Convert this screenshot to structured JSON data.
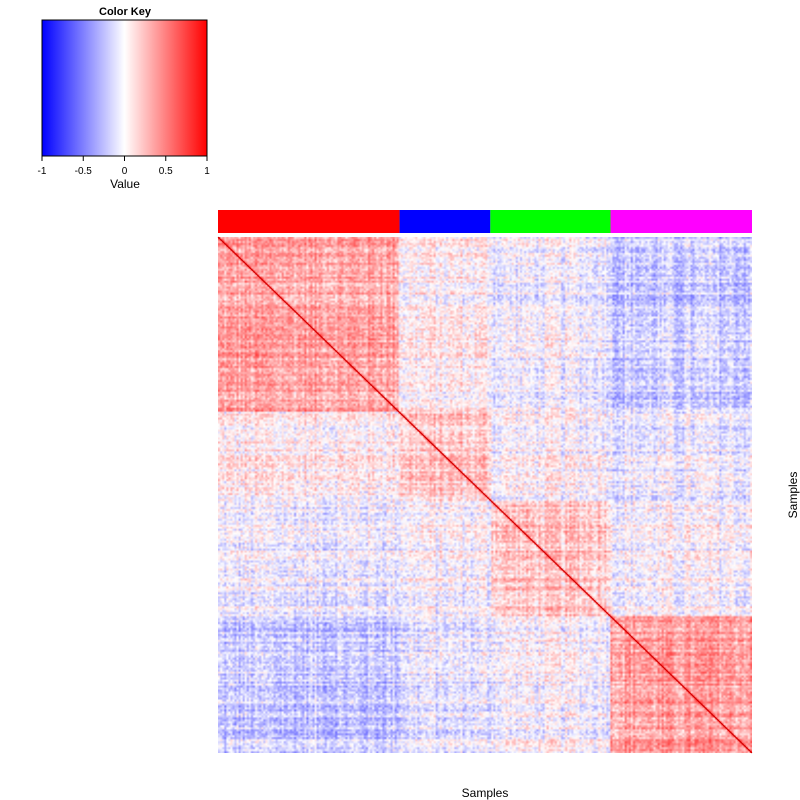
{
  "chart_data": {
    "type": "heatmap",
    "color_key": {
      "title": "Color Key",
      "xlabel": "Value",
      "ticks": [
        "-1",
        "-0.5",
        "0",
        "0.5",
        "1"
      ],
      "range": [
        -1,
        1
      ],
      "colors": {
        "low": "#0000ff",
        "mid": "#ffffff",
        "high": "#ff0000"
      }
    },
    "xlabel": "Samples",
    "ylabel": "Samples",
    "groups": [
      {
        "color": "#ff0000",
        "fraction": 0.34,
        "within": 0.35,
        "between": [
          0.35,
          0.05,
          -0.05,
          -0.2
        ]
      },
      {
        "color": "#0000ff",
        "fraction": 0.17,
        "within": 0.2,
        "between": [
          0.05,
          0.2,
          0.0,
          -0.08
        ]
      },
      {
        "color": "#00ff00",
        "fraction": 0.225,
        "within": 0.22,
        "between": [
          -0.05,
          0.0,
          0.22,
          0.0
        ]
      },
      {
        "color": "#ff00ff",
        "fraction": 0.265,
        "within": 0.38,
        "between": [
          -0.2,
          -0.08,
          0.0,
          0.38
        ]
      }
    ],
    "diagonal_value": 1
  }
}
